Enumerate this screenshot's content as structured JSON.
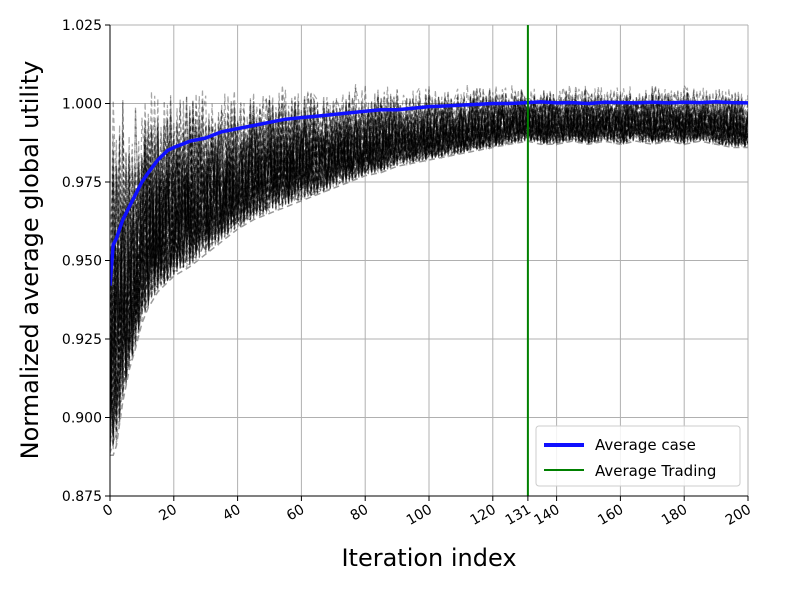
{
  "chart_data": {
    "type": "line",
    "title": "",
    "xlabel": "Iteration index",
    "ylabel": "Normalized average global utility",
    "xlim": [
      0,
      200
    ],
    "ylim": [
      0.875,
      1.025
    ],
    "x_ticks": [
      0,
      20,
      40,
      60,
      80,
      100,
      120,
      131,
      140,
      160,
      180,
      200
    ],
    "x_tick_labels": [
      "0",
      "20",
      "40",
      "60",
      "80",
      "100",
      "120",
      "131",
      "140",
      "160",
      "180",
      "200"
    ],
    "y_ticks": [
      0.875,
      0.9,
      0.925,
      0.95,
      0.975,
      1.0,
      1.025
    ],
    "y_tick_labels": [
      "0.875",
      "0.900",
      "0.925",
      "0.950",
      "0.975",
      "1.000",
      "1.025"
    ],
    "grid": true,
    "legend_position": "bottom-right",
    "vline": {
      "x": 131,
      "name": "Average Trading",
      "color": "#008000"
    },
    "series": [
      {
        "name": "Average case",
        "color": "#1010ff",
        "x": [
          0,
          1,
          2,
          3,
          4,
          5,
          6,
          8,
          10,
          12,
          15,
          18,
          20,
          25,
          30,
          35,
          40,
          45,
          50,
          55,
          60,
          65,
          70,
          75,
          80,
          85,
          90,
          95,
          100,
          105,
          110,
          115,
          120,
          125,
          131,
          135,
          140,
          145,
          150,
          155,
          160,
          165,
          170,
          175,
          180,
          185,
          190,
          195,
          200
        ],
        "values": [
          0.942,
          0.955,
          0.957,
          0.96,
          0.963,
          0.965,
          0.967,
          0.971,
          0.975,
          0.978,
          0.982,
          0.985,
          0.986,
          0.988,
          0.989,
          0.991,
          0.992,
          0.993,
          0.994,
          0.995,
          0.9955,
          0.996,
          0.9965,
          0.997,
          0.9975,
          0.998,
          0.998,
          0.9985,
          0.999,
          0.9992,
          0.9995,
          0.9997,
          1.0,
          1.0,
          1.0003,
          1.0005,
          1.0002,
          1.0003,
          1.0,
          1.0004,
          1.0003,
          1.0002,
          1.0004,
          1.0002,
          1.0004,
          1.0003,
          1.0005,
          1.0003,
          1.0002
        ]
      }
    ],
    "trials": {
      "color": "#000000",
      "style": "dashed",
      "upper_envelope": [
        0.972,
        1.0065,
        1.0065,
        1.0065,
        1.0065,
        1.0065,
        1.0065,
        1.0065,
        1.0065,
        1.0065,
        1.0065,
        1.0065,
        1.0065,
        1.0065,
        1.0065,
        1.0065,
        1.0065,
        1.0065,
        1.0065,
        1.0065,
        1.0065,
        1.0065,
        1.0065,
        1.0065,
        1.0065,
        1.0065,
        1.0065,
        1.0065,
        1.0065,
        1.0065,
        1.0065,
        1.0065,
        1.0065,
        1.0065,
        1.0065,
        1.0065,
        1.0065,
        1.0065,
        1.0065,
        1.0065,
        1.0065,
        1.0065,
        1.0065,
        1.0065,
        1.0065,
        1.0065,
        1.0065,
        1.0065,
        1.0065
      ],
      "lower_envelope": [
        0.888,
        0.888,
        0.891,
        0.898,
        0.905,
        0.91,
        0.915,
        0.922,
        0.93,
        0.935,
        0.94,
        0.943,
        0.945,
        0.948,
        0.952,
        0.956,
        0.96,
        0.963,
        0.965,
        0.967,
        0.969,
        0.971,
        0.973,
        0.975,
        0.977,
        0.978,
        0.98,
        0.981,
        0.982,
        0.983,
        0.984,
        0.985,
        0.986,
        0.987,
        0.988,
        0.987,
        0.987,
        0.988,
        0.987,
        0.988,
        0.987,
        0.988,
        0.987,
        0.988,
        0.987,
        0.988,
        0.987,
        0.986,
        0.986
      ]
    }
  }
}
